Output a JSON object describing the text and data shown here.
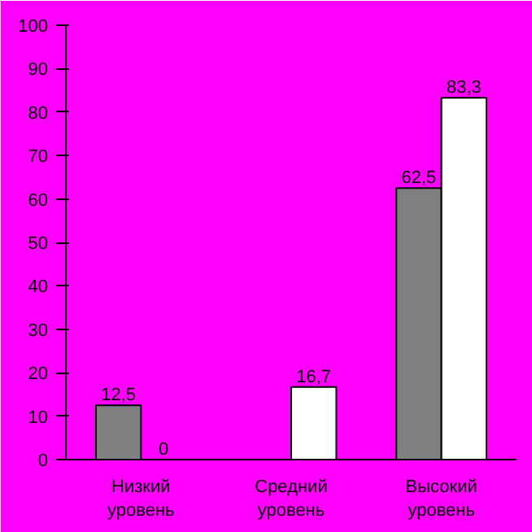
{
  "chart_data": {
    "type": "bar",
    "categories": [
      "Низкий\nуровень",
      "Средний\nуровень",
      "Высокий\nуровень"
    ],
    "series": [
      {
        "color": "#808080",
        "values": [
          12.5,
          0,
          62.5
        ],
        "value_labels": [
          "12,5",
          null,
          "62,5"
        ]
      },
      {
        "color": "#ffffff",
        "values": [
          0,
          16.7,
          83.3
        ],
        "value_labels": [
          "0",
          "16,7",
          "83,3"
        ]
      }
    ],
    "ylim": [
      0,
      100
    ],
    "yticks": [
      0,
      10,
      20,
      30,
      40,
      50,
      60,
      70,
      80,
      90,
      100
    ],
    "grid": false
  }
}
